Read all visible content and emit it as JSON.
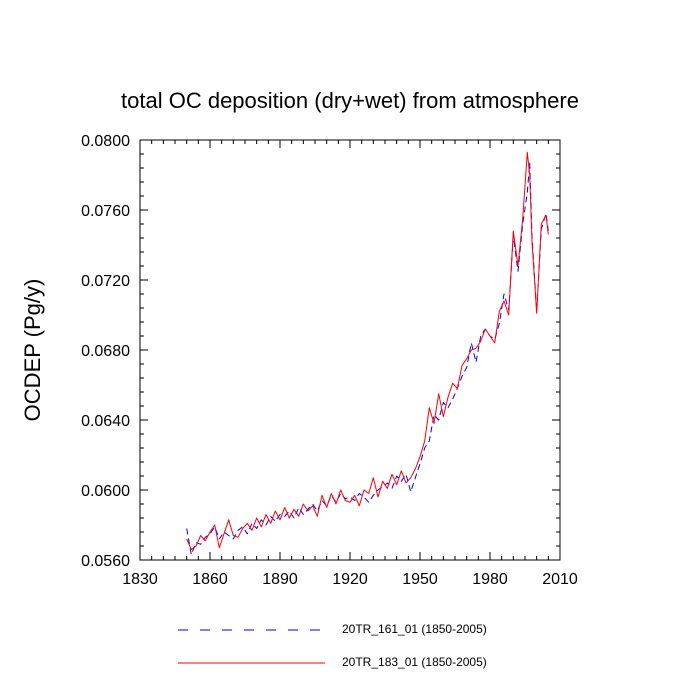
{
  "chart_data": {
    "type": "line",
    "title": "total OC deposition (dry+wet) from atmosphere",
    "xlabel": "",
    "ylabel": "OCDEP  (Pg/y)",
    "xlim": [
      1830,
      2010
    ],
    "ylim": [
      0.056,
      0.08
    ],
    "xticks": [
      1830,
      1860,
      1890,
      1920,
      1950,
      1980,
      2010
    ],
    "xtick_labels": [
      "1830",
      "1860",
      "1890",
      "1920",
      "1950",
      "1980",
      "2010"
    ],
    "yticks": [
      0.056,
      0.06,
      0.064,
      0.068,
      0.072,
      0.076,
      0.08
    ],
    "ytick_labels": [
      "0.0560",
      "0.0600",
      "0.0640",
      "0.0680",
      "0.0720",
      "0.0760",
      "0.0800"
    ],
    "legend_position": "bottom",
    "series": [
      {
        "name": "20TR_161_01 (1850-2005)",
        "color": "#0000ff",
        "dash": "dashed",
        "x": [
          1850,
          1852,
          1854,
          1856,
          1858,
          1860,
          1862,
          1864,
          1866,
          1868,
          1870,
          1872,
          1874,
          1876,
          1878,
          1880,
          1882,
          1884,
          1886,
          1888,
          1890,
          1892,
          1894,
          1896,
          1898,
          1900,
          1902,
          1904,
          1906,
          1908,
          1910,
          1912,
          1914,
          1916,
          1918,
          1920,
          1922,
          1924,
          1926,
          1928,
          1930,
          1932,
          1934,
          1936,
          1938,
          1940,
          1942,
          1944,
          1946,
          1948,
          1950,
          1952,
          1954,
          1956,
          1958,
          1960,
          1962,
          1964,
          1966,
          1968,
          1970,
          1972,
          1974,
          1976,
          1978,
          1980,
          1982,
          1984,
          1986,
          1988,
          1990,
          1992,
          1994,
          1996,
          1997,
          1998,
          2000,
          2002,
          2004,
          2005
        ],
        "values": [
          0.0578,
          0.0563,
          0.057,
          0.0569,
          0.0573,
          0.0575,
          0.0579,
          0.0572,
          0.0576,
          0.0574,
          0.0572,
          0.0577,
          0.0579,
          0.0575,
          0.0581,
          0.0578,
          0.0583,
          0.058,
          0.0585,
          0.0582,
          0.0586,
          0.0585,
          0.0588,
          0.0584,
          0.059,
          0.0586,
          0.0589,
          0.0592,
          0.0588,
          0.0594,
          0.0591,
          0.0597,
          0.0593,
          0.0598,
          0.0595,
          0.0596,
          0.0594,
          0.0598,
          0.0596,
          0.0593,
          0.0597,
          0.06,
          0.0602,
          0.0604,
          0.0601,
          0.0608,
          0.0605,
          0.0609,
          0.0599,
          0.0607,
          0.0615,
          0.0624,
          0.0628,
          0.0643,
          0.064,
          0.065,
          0.0647,
          0.0652,
          0.0658,
          0.0665,
          0.067,
          0.0684,
          0.0673,
          0.0688,
          0.0692,
          0.0688,
          0.0686,
          0.0695,
          0.0712,
          0.0703,
          0.0745,
          0.0725,
          0.0752,
          0.077,
          0.0787,
          0.0745,
          0.0702,
          0.0749,
          0.0758,
          0.0748
        ]
      },
      {
        "name": "20TR_183_01 (1850-2005)",
        "color": "#ff0000",
        "dash": "solid",
        "x": [
          1850,
          1852,
          1854,
          1856,
          1858,
          1860,
          1862,
          1864,
          1866,
          1868,
          1870,
          1872,
          1874,
          1876,
          1878,
          1880,
          1882,
          1884,
          1886,
          1888,
          1890,
          1892,
          1894,
          1896,
          1898,
          1900,
          1902,
          1904,
          1906,
          1908,
          1910,
          1912,
          1914,
          1916,
          1918,
          1920,
          1922,
          1924,
          1926,
          1928,
          1930,
          1932,
          1934,
          1936,
          1938,
          1940,
          1942,
          1944,
          1946,
          1948,
          1950,
          1952,
          1954,
          1956,
          1958,
          1960,
          1962,
          1964,
          1966,
          1968,
          1970,
          1972,
          1974,
          1976,
          1978,
          1980,
          1982,
          1984,
          1986,
          1988,
          1990,
          1992,
          1994,
          1996,
          1997,
          1998,
          2000,
          2002,
          2004,
          2005
        ],
        "values": [
          0.0572,
          0.0566,
          0.0568,
          0.0574,
          0.0571,
          0.0576,
          0.058,
          0.0567,
          0.0575,
          0.0583,
          0.0574,
          0.0573,
          0.0578,
          0.0581,
          0.0577,
          0.0584,
          0.0579,
          0.0586,
          0.0581,
          0.0588,
          0.0583,
          0.059,
          0.0584,
          0.0589,
          0.0585,
          0.0592,
          0.0588,
          0.0591,
          0.0585,
          0.0597,
          0.059,
          0.0598,
          0.0592,
          0.06,
          0.0594,
          0.0593,
          0.0597,
          0.0591,
          0.06,
          0.0598,
          0.0607,
          0.0596,
          0.0605,
          0.0601,
          0.0609,
          0.0603,
          0.0611,
          0.0604,
          0.0607,
          0.0612,
          0.0619,
          0.0628,
          0.0647,
          0.0638,
          0.0655,
          0.0642,
          0.0653,
          0.0661,
          0.0658,
          0.0671,
          0.0675,
          0.068,
          0.0681,
          0.0685,
          0.0692,
          0.0688,
          0.0684,
          0.0702,
          0.0708,
          0.07,
          0.0748,
          0.0728,
          0.0755,
          0.0793,
          0.078,
          0.0742,
          0.0701,
          0.0752,
          0.0757,
          0.0746
        ]
      }
    ]
  }
}
